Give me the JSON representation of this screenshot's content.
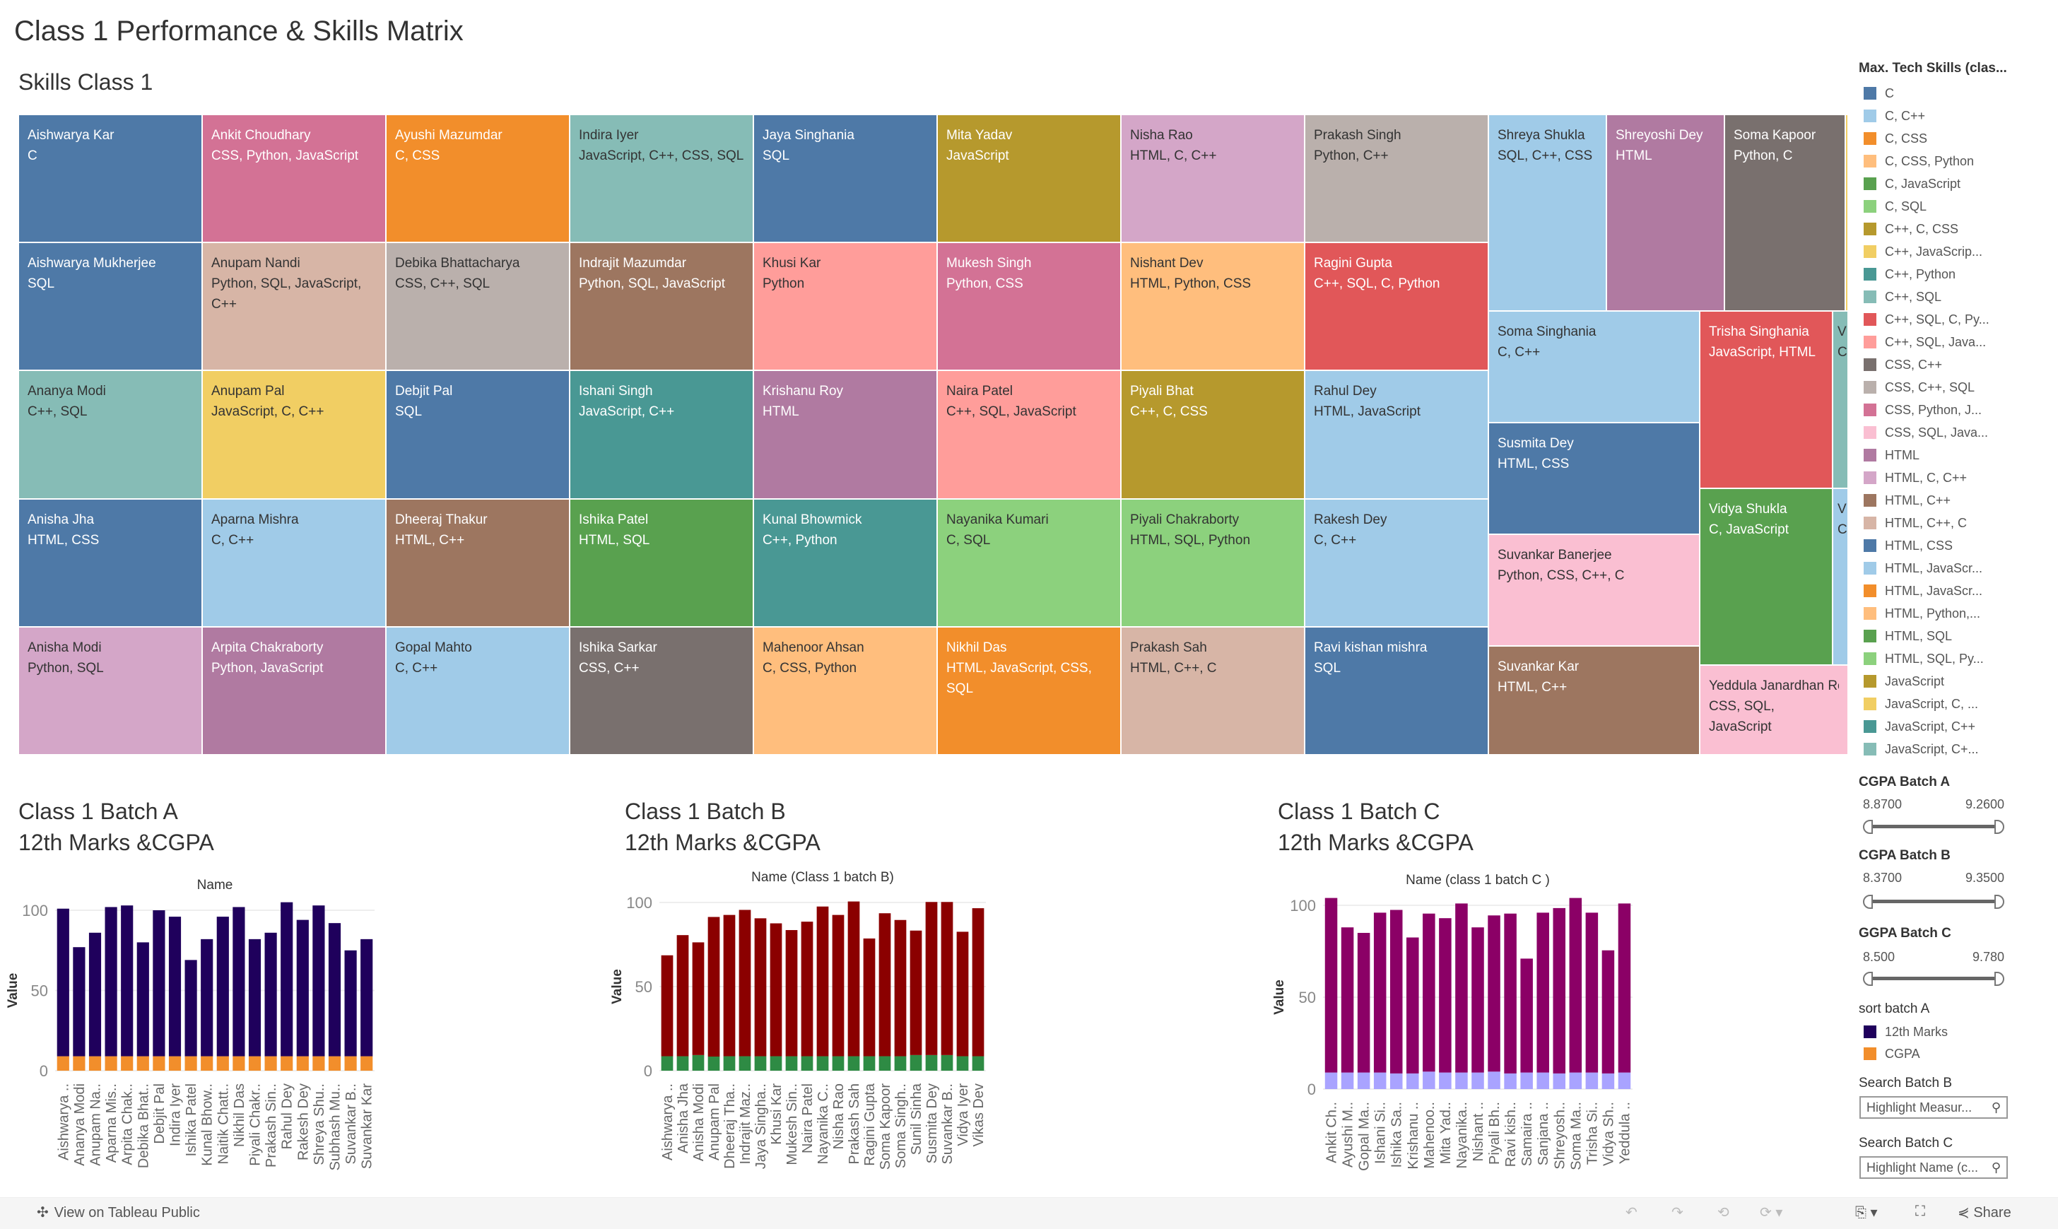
{
  "dashboard": {
    "title": "Class 1 Performance & Skills Matrix"
  },
  "treemap": {
    "title": "Skills Class 1",
    "cells": [
      {
        "name": "Aishwarya Kar",
        "skills": "C",
        "color": "#4e79a7"
      },
      {
        "name": "Aishwarya Mukherjee",
        "skills": "SQL",
        "color": "#4e79a7"
      },
      {
        "name": "Ananya Modi",
        "skills": "C++, SQL",
        "color": "#86bcb6"
      },
      {
        "name": "Anisha Jha",
        "skills": "HTML, CSS",
        "color": "#4e79a7"
      },
      {
        "name": "Anisha Modi",
        "skills": "Python, SQL",
        "color": "#d4a6c8"
      },
      {
        "name": "Ankit Choudhary",
        "skills": "CSS, Python, JavaScript",
        "color": "#d37295"
      },
      {
        "name": "Anupam Nandi",
        "skills": "Python, SQL, JavaScript, C++",
        "color": "#d7b5a6"
      },
      {
        "name": "Anupam Pal",
        "skills": "JavaScript, C, C++",
        "color": "#f1ce63"
      },
      {
        "name": "Aparna Mishra",
        "skills": "C, C++",
        "color": "#a0cbe8"
      },
      {
        "name": "Arpita Chakraborty",
        "skills": "Python, JavaScript",
        "color": "#b07aa1"
      },
      {
        "name": "Ayushi Mazumdar",
        "skills": "C, CSS",
        "color": "#f28e2b"
      },
      {
        "name": "Debika Bhattacharya",
        "skills": "CSS, C++, SQL",
        "color": "#bab0ac"
      },
      {
        "name": "Debjit Pal",
        "skills": "SQL",
        "color": "#4e79a7"
      },
      {
        "name": "Dheeraj Thakur",
        "skills": "HTML, C++",
        "color": "#9d7660"
      },
      {
        "name": "Gopal Mahto",
        "skills": "C, C++",
        "color": "#a0cbe8"
      },
      {
        "name": "Indira Iyer",
        "skills": "JavaScript, C++, CSS, SQL",
        "color": "#86bcb6"
      },
      {
        "name": "Indrajit Mazumdar",
        "skills": "Python, SQL, JavaScript",
        "color": "#9d7660"
      },
      {
        "name": "Ishani Singh",
        "skills": "JavaScript, C++",
        "color": "#499894"
      },
      {
        "name": "Ishika Patel",
        "skills": "HTML, SQL",
        "color": "#59a14f"
      },
      {
        "name": "Ishika Sarkar",
        "skills": "CSS, C++",
        "color": "#79706e"
      },
      {
        "name": "Jaya Singhania",
        "skills": "SQL",
        "color": "#4e79a7"
      },
      {
        "name": "Khusi Kar",
        "skills": "Python",
        "color": "#ff9d9a"
      },
      {
        "name": "Krishanu Roy",
        "skills": "HTML",
        "color": "#b07aa1"
      },
      {
        "name": "Kunal Bhowmick",
        "skills": "C++, Python",
        "color": "#499894"
      },
      {
        "name": "Mahenoor Ahsan",
        "skills": "C, CSS, Python",
        "color": "#ffbe7d"
      },
      {
        "name": "Mita Yadav",
        "skills": "JavaScript",
        "color": "#b6992d"
      },
      {
        "name": "Mukesh Singh",
        "skills": "Python, CSS",
        "color": "#d37295"
      },
      {
        "name": "Naira Patel",
        "skills": "C++, SQL, JavaScript",
        "color": "#ff9d9a"
      },
      {
        "name": "Nayanika Kumari",
        "skills": "C, SQL",
        "color": "#8cd17d"
      },
      {
        "name": "Nikhil Das",
        "skills": "HTML, JavaScript, CSS, SQL",
        "color": "#f28e2b"
      },
      {
        "name": "Nisha Rao",
        "skills": "HTML, C, C++",
        "color": "#d4a6c8"
      },
      {
        "name": "Nishant Dev",
        "skills": "HTML, Python, CSS",
        "color": "#ffbe7d"
      },
      {
        "name": "Piyali Bhat",
        "skills": "C++, C, CSS",
        "color": "#b6992d"
      },
      {
        "name": "Piyali Chakraborty",
        "skills": "HTML, SQL, Python",
        "color": "#8cd17d"
      },
      {
        "name": "Prakash Sah",
        "skills": "HTML, C++, C",
        "color": "#d7b5a6"
      },
      {
        "name": "Prakash Singh",
        "skills": "Python, C++",
        "color": "#bab0ac"
      },
      {
        "name": "Ragini Gupta",
        "skills": "C++, SQL, C, Python",
        "color": "#e15759"
      },
      {
        "name": "Rahul Dey",
        "skills": "HTML, JavaScript",
        "color": "#a0cbe8"
      },
      {
        "name": "Rakesh Dey",
        "skills": "C, C++",
        "color": "#a0cbe8"
      },
      {
        "name": "Ravi kishan mishra",
        "skills": "SQL",
        "color": "#4e79a7"
      },
      {
        "name": "Shreya Shukla",
        "skills": "SQL, C++, CSS",
        "color": "#a0cbe8"
      },
      {
        "name": "Shreyoshi Dey",
        "skills": "HTML",
        "color": "#b07aa1"
      },
      {
        "name": "Soma Kapoor",
        "skills": "Python, C",
        "color": "#79706e"
      },
      {
        "name": "Soma Singhania",
        "skills": "C, C++",
        "color": "#a0cbe8"
      },
      {
        "name": "Susmita Dey",
        "skills": "HTML, CSS",
        "color": "#4e79a7"
      },
      {
        "name": "Suvankar Banerjee",
        "skills": "Python, CSS, C++, C",
        "color": "#fabfd2"
      },
      {
        "name": "Suvankar Kar",
        "skills": "HTML, C++",
        "color": "#9d7660"
      },
      {
        "name": "Trisha Singhania",
        "skills": "JavaScript, HTML",
        "color": "#e15759"
      },
      {
        "name": "Vidya Shukla",
        "skills": "C, JavaScript",
        "color": "#59a14f"
      },
      {
        "name": "V",
        "skills": "C",
        "color": "#86bcb6"
      },
      {
        "name": "V",
        "skills": "C",
        "color": "#a0cbe8"
      },
      {
        "name": "Yeddula Janardhan Re",
        "skills": "CSS, SQL, JavaScript",
        "color": "#fabfd2"
      },
      {
        "name": "",
        "skills": "",
        "color": "#f1ce63"
      }
    ]
  },
  "legend": {
    "title": "Max. Tech Skills (clas...",
    "items": [
      {
        "label": "C",
        "color": "#4e79a7"
      },
      {
        "label": "C, C++",
        "color": "#a0cbe8"
      },
      {
        "label": "C, CSS",
        "color": "#f28e2b"
      },
      {
        "label": "C, CSS, Python",
        "color": "#ffbe7d"
      },
      {
        "label": "C, JavaScript",
        "color": "#59a14f"
      },
      {
        "label": "C, SQL",
        "color": "#8cd17d"
      },
      {
        "label": "C++, C, CSS",
        "color": "#b6992d"
      },
      {
        "label": "C++, JavaScrip...",
        "color": "#f1ce63"
      },
      {
        "label": "C++, Python",
        "color": "#499894"
      },
      {
        "label": "C++, SQL",
        "color": "#86bcb6"
      },
      {
        "label": "C++, SQL, C, Py...",
        "color": "#e15759"
      },
      {
        "label": "C++, SQL, Java...",
        "color": "#ff9d9a"
      },
      {
        "label": "CSS, C++",
        "color": "#79706e"
      },
      {
        "label": "CSS, C++, SQL",
        "color": "#bab0ac"
      },
      {
        "label": "CSS, Python, J...",
        "color": "#d37295"
      },
      {
        "label": "CSS, SQL, Java...",
        "color": "#fabfd2"
      },
      {
        "label": "HTML",
        "color": "#b07aa1"
      },
      {
        "label": "HTML, C, C++",
        "color": "#d4a6c8"
      },
      {
        "label": "HTML, C++",
        "color": "#9d7660"
      },
      {
        "label": "HTML, C++, C",
        "color": "#d7b5a6"
      },
      {
        "label": "HTML, CSS",
        "color": "#4e79a7"
      },
      {
        "label": "HTML, JavaScr...",
        "color": "#a0cbe8"
      },
      {
        "label": "HTML, JavaScr...",
        "color": "#f28e2b"
      },
      {
        "label": "HTML, Python,...",
        "color": "#ffbe7d"
      },
      {
        "label": "HTML, SQL",
        "color": "#59a14f"
      },
      {
        "label": "HTML, SQL, Py...",
        "color": "#8cd17d"
      },
      {
        "label": "JavaScript",
        "color": "#b6992d"
      },
      {
        "label": "JavaScript, C, ...",
        "color": "#f1ce63"
      },
      {
        "label": "JavaScript, C++",
        "color": "#499894"
      },
      {
        "label": "JavaScript, C+...",
        "color": "#86bcb6"
      }
    ]
  },
  "filters": {
    "batch_a": {
      "title": "CGPA Batch A",
      "min": "8.8700",
      "max": "9.2600"
    },
    "batch_b": {
      "title": "CGPA  Batch B",
      "min": "8.3700",
      "max": "9.3500"
    },
    "batch_c": {
      "title": "GGPA Batch C",
      "min": "8.500",
      "max": "9.780"
    },
    "sort": {
      "title": "sort batch A",
      "items": [
        {
          "label": "12th Marks",
          "color": "#1f005c"
        },
        {
          "label": "CGPA",
          "color": "#f28e2b"
        }
      ]
    },
    "search_b": {
      "title": "Search Batch B",
      "placeholder": "Highlight Measur..."
    },
    "search_c": {
      "title": "Search Batch C",
      "placeholder": "Highlight Name (c..."
    }
  },
  "chart_data": [
    {
      "type": "bar",
      "stacked": true,
      "title": "Class 1 Batch A",
      "subtitle": "12th Marks &CGPA",
      "xlabel": "Name",
      "ylabel": "Value",
      "yticks": [
        0,
        50,
        100
      ],
      "categories": [
        "Aishwarya ..",
        "Ananya Modi",
        "Anupam Na..",
        "Aparna Mis..",
        "Arpita Chak..",
        "Debika Bhat..",
        "Debjit Pal",
        "Indira Iyer",
        "Ishika Patel",
        "Kunal Bhow..",
        "Naitik Chatt..",
        "Nikhil Das",
        "Piyali Chakr..",
        "Prakash Sin..",
        "Rahul Dey",
        "Rakesh Dey",
        "Shreya Shu..",
        "Subhash Mu..",
        "Suvankar B..",
        "Suvankar Kar"
      ],
      "series": [
        {
          "name": "CGPA",
          "color": "#f28e2b",
          "values": [
            9,
            9,
            9,
            9,
            9,
            9,
            9,
            9,
            9,
            9,
            9,
            9,
            9,
            9,
            9,
            9,
            9,
            9,
            9,
            9
          ]
        },
        {
          "name": "12th Marks",
          "color": "#1f005c",
          "values": [
            92,
            68,
            77,
            93,
            94,
            71,
            91,
            87,
            60,
            73,
            87,
            93,
            73,
            77,
            96,
            85,
            94,
            83,
            66,
            73
          ]
        }
      ]
    },
    {
      "type": "bar",
      "stacked": true,
      "title": "Class 1 Batch B",
      "subtitle": "12th Marks &CGPA",
      "xlabel": "Name (Class 1 batch B)",
      "ylabel": "Value",
      "yticks": [
        0,
        50,
        100
      ],
      "categories": [
        "Aishwarya ..",
        "Anisha Jha",
        "Anisha Modi",
        "Anupam Pal",
        "Dheeraj Tha..",
        "Indrajit Maz..",
        "Jaya Singha..",
        "Khusi Kar",
        "Mukesh Sin..",
        "Naira Patel",
        "Nayanika C..",
        "Nisha Rao",
        "Prakash Sah",
        "Ragini Gupta",
        "Soma Kapoor",
        "Soma Singh..",
        "Sunil Sinha",
        "Susmita Dey",
        "Suvankar B..",
        "Vidya Iyer",
        "Vikas Dev"
      ],
      "series": [
        {
          "color": "#2e8b44",
          "values": [
            8.6,
            8.6,
            9.3,
            8.4,
            8.6,
            8.6,
            8.6,
            8.6,
            8.6,
            8.6,
            8.6,
            8.6,
            8.6,
            8.6,
            8.6,
            8.6,
            9.3,
            9.3,
            9.3,
            8.6,
            8.6
          ]
        },
        {
          "color": "#8b0000",
          "values": [
            60,
            72,
            67,
            83,
            84,
            87,
            82,
            79,
            75,
            80,
            89,
            84,
            92,
            70,
            85,
            81,
            74,
            91,
            91,
            74,
            88
          ]
        }
      ]
    },
    {
      "type": "bar",
      "stacked": true,
      "title": "Class 1 Batch C",
      "subtitle": "12th Marks &CGPA",
      "xlabel": "Name (class 1 batch C )",
      "ylabel": "Value",
      "yticks": [
        0,
        50,
        100
      ],
      "categories": [
        "Ankit Ch..",
        "Ayushi M..",
        "Gopal Ma..",
        "Ishani Si..",
        "Ishika Sa..",
        "Krishanu ..",
        "Mahenoo..",
        "Mita Yad..",
        "Nayanika..",
        "Nishant ..",
        "Piyali Bh..",
        "Ravi kish..",
        "Samaira ..",
        "Sanjana ..",
        "Shreyosh..",
        "Soma Ma..",
        "Trisha Si..",
        "Vidya Sh..",
        "Yeddula .."
      ],
      "series": [
        {
          "color": "#a9a3ff",
          "values": [
            9,
            9,
            9,
            9,
            8.5,
            8.5,
            9.5,
            9,
            9,
            9,
            9.5,
            8.5,
            9,
            9,
            8.5,
            9,
            9,
            8.5,
            9
          ]
        },
        {
          "color": "#8b0066",
          "values": [
            95,
            79,
            76,
            87,
            89,
            74,
            86,
            84,
            92,
            79,
            85,
            87,
            62,
            87,
            90,
            95,
            87,
            67,
            92
          ]
        }
      ]
    }
  ],
  "toolbar": {
    "view_label": "View on Tableau Public",
    "share_label": "Share"
  }
}
